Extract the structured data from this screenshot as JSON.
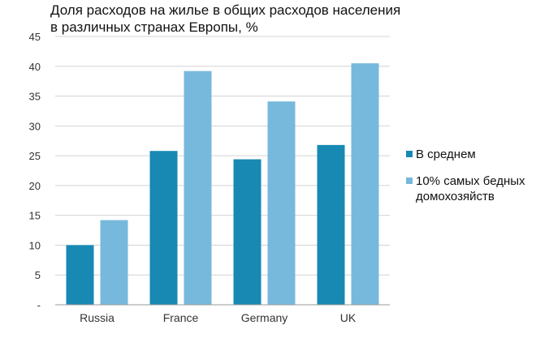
{
  "title": {
    "line1": "Доля расходов на жилье в общих расходов населения",
    "line2": "в различных странах Европы, %"
  },
  "colors": {
    "series_avg": "#1789b3",
    "series_poor": "#77b9dc",
    "grid": "#d4d4d4",
    "axis": "#9a9a9a",
    "text": "#333333"
  },
  "chart_data": {
    "type": "bar",
    "categories": [
      "Russia",
      "France",
      "Germany",
      "UK"
    ],
    "series": [
      {
        "name": "В среднем",
        "values": [
          10,
          25.8,
          24.4,
          26.8
        ]
      },
      {
        "name": "10% самых бедных домохозяйств",
        "values": [
          14.2,
          39.2,
          34.1,
          40.5
        ]
      }
    ],
    "yticks": [
      "-",
      "5",
      "10",
      "15",
      "20",
      "25",
      "30",
      "35",
      "40",
      "45"
    ],
    "ylim": [
      0,
      45
    ],
    "grid": true,
    "legend_position": "right"
  },
  "legend": [
    {
      "label": "В среднем"
    },
    {
      "label": "10% самых бедных домохозяйств"
    }
  ]
}
